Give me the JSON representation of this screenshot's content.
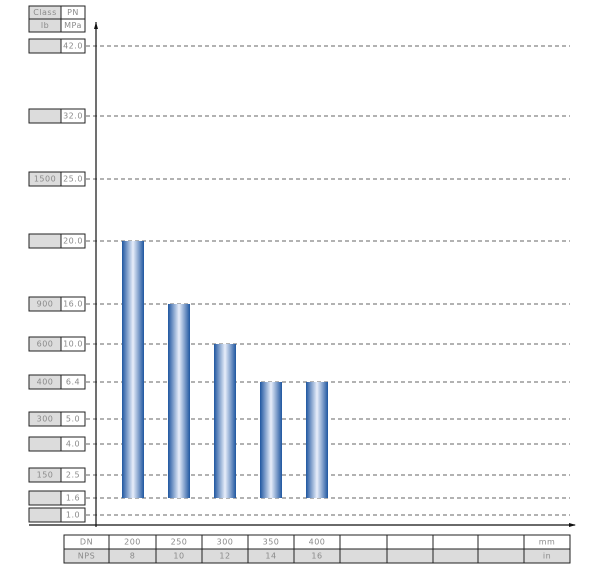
{
  "chart_data": {
    "type": "bar",
    "header": {
      "class_label": "Class",
      "class_unit": "lb",
      "pn_label": "PN",
      "pn_unit": "MPa"
    },
    "y_ticks": [
      {
        "pn": "42.0",
        "class": ""
      },
      {
        "pn": "32.0",
        "class": ""
      },
      {
        "pn": "25.0",
        "class": "1500"
      },
      {
        "pn": "20.0",
        "class": ""
      },
      {
        "pn": "16.0",
        "class": "900"
      },
      {
        "pn": "10.0",
        "class": "600"
      },
      {
        "pn": "6.4",
        "class": "400"
      },
      {
        "pn": "5.0",
        "class": "300"
      },
      {
        "pn": "4.0",
        "class": ""
      },
      {
        "pn": "2.5",
        "class": "150"
      },
      {
        "pn": "1.6",
        "class": ""
      },
      {
        "pn": "1.0",
        "class": ""
      }
    ],
    "x_table": {
      "dn_label": "DN",
      "nps_label": "NPS",
      "dn_unit": "mm",
      "nps_unit": "in",
      "dn": [
        "200",
        "250",
        "300",
        "350",
        "400",
        "",
        "",
        "",
        ""
      ],
      "nps": [
        "8",
        "10",
        "12",
        "14",
        "16",
        "",
        "",
        "",
        ""
      ]
    },
    "bars": [
      {
        "dn": "200",
        "from": 1.6,
        "to": 20.0
      },
      {
        "dn": "250",
        "from": 1.6,
        "to": 16.0
      },
      {
        "dn": "300",
        "from": 1.6,
        "to": 10.0
      },
      {
        "dn": "350",
        "from": 1.6,
        "to": 6.4
      },
      {
        "dn": "400",
        "from": 1.6,
        "to": 6.4
      }
    ],
    "colors": {
      "bar_dark": "#1f56a0",
      "bar_light": "#e8eefa",
      "label_bg": "#dcdcdc"
    },
    "grid": "dashed"
  }
}
